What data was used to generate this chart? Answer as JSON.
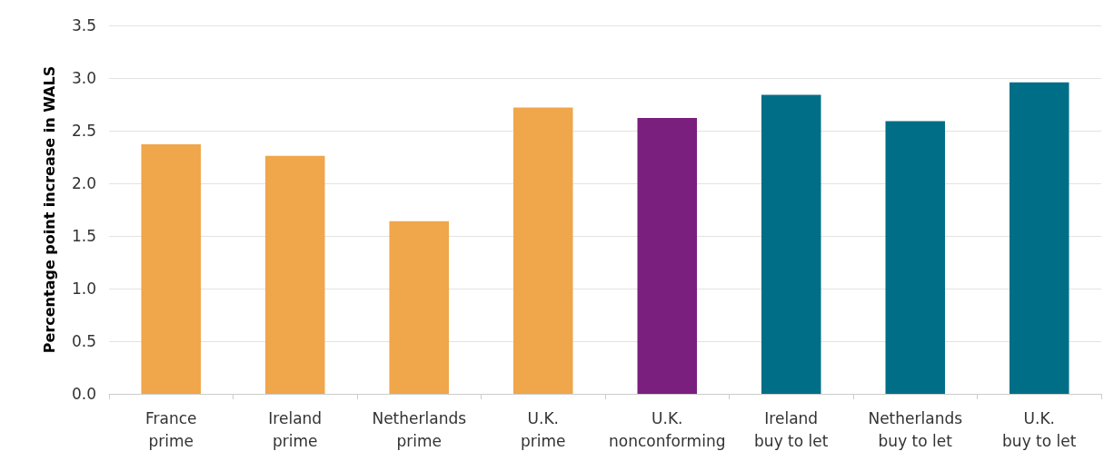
{
  "chart_data": {
    "type": "bar",
    "ylabel": "Percentage point increase in WALS",
    "categories": [
      "France prime",
      "Ireland prime",
      "Netherlands prime",
      "U.K. prime",
      "U.K. nonconforming",
      "Ireland buy to let",
      "Netherlands buy to let",
      "U.K. buy to let"
    ],
    "values": [
      2.37,
      2.26,
      1.64,
      2.72,
      2.62,
      2.84,
      2.59,
      2.96
    ],
    "colors": [
      "#f0a64a",
      "#f0a64a",
      "#f0a64a",
      "#f0a64a",
      "#7a1f7d",
      "#006e87",
      "#006e87",
      "#006e87"
    ],
    "ylim": [
      0,
      3.5
    ],
    "yticks": [
      {
        "value": 0,
        "label": "0.0"
      },
      0.5,
      {
        "value": 1,
        "label": "1.0"
      },
      1.5,
      {
        "value": 2,
        "label": "2.0"
      },
      2.5,
      {
        "value": 3,
        "label": "3.0"
      },
      3.5
    ],
    "grid": "y"
  }
}
